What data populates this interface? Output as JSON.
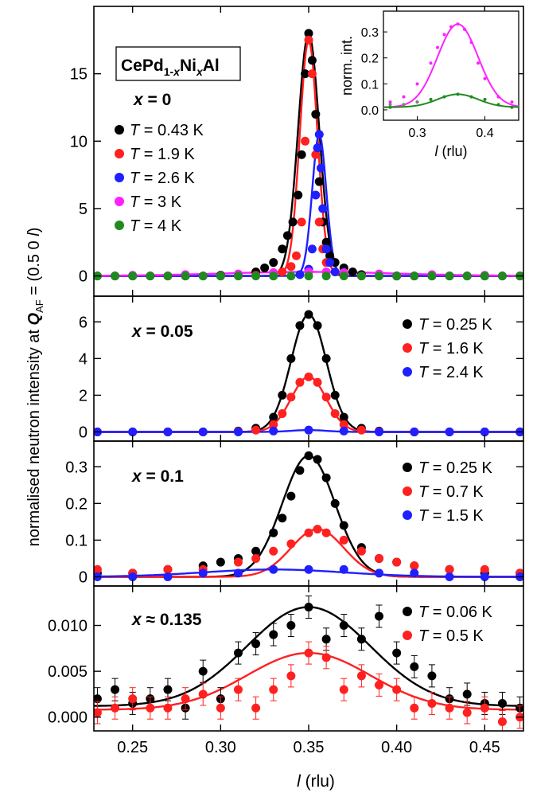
{
  "figure": {
    "ylabel_pre": "normalised neutron intensity at ",
    "ylabel_Q": "Q",
    "ylabel_sub": "AF",
    "ylabel_post": " = (0.5 0 ",
    "ylabel_l": "l",
    "ylabel_end": ")",
    "xlabel_l": "l",
    "xlabel_unit": " (rlu)",
    "compound_parts": [
      "CePd",
      "1-",
      "x",
      "Ni",
      "x",
      "Al"
    ],
    "x_ticks": [
      "0.25",
      "0.30",
      "0.35",
      "0.40",
      "0.45"
    ],
    "colors": {
      "black": "#000000",
      "red": "#ff2020",
      "blue": "#1f1fff",
      "magenta": "#ff20ff",
      "green": "#208a20",
      "grey": "#808080"
    }
  },
  "chart_data": [
    {
      "type": "scatter",
      "panel": "x = 0",
      "label_sym": "x",
      "label_rel": "=",
      "label_val": "0",
      "xlim": [
        0.228,
        0.472
      ],
      "ylim": [
        -1.5,
        20
      ],
      "yticks": [
        0,
        5,
        10,
        15
      ],
      "series": [
        {
          "name": "T = 0.43 K",
          "T": "0.43 K",
          "color": "#000000",
          "x": [
            0.23,
            0.24,
            0.25,
            0.26,
            0.27,
            0.28,
            0.29,
            0.3,
            0.31,
            0.32,
            0.325,
            0.33,
            0.335,
            0.338,
            0.341,
            0.344,
            0.346,
            0.348,
            0.35,
            0.352,
            0.354,
            0.356,
            0.358,
            0.36,
            0.362,
            0.365,
            0.37,
            0.375,
            0.38,
            0.39,
            0.4,
            0.41,
            0.42,
            0.43,
            0.44,
            0.45,
            0.46,
            0.47
          ],
          "y": [
            0,
            0,
            0,
            0,
            0,
            0,
            0,
            0.05,
            0.1,
            0.3,
            0.6,
            1.0,
            2.0,
            3.0,
            4.0,
            6.0,
            9.0,
            15.0,
            18.0,
            16.0,
            12.0,
            7.0,
            4.0,
            2.5,
            1.5,
            1.0,
            0.6,
            0.3,
            0.1,
            0.05,
            0,
            0,
            0,
            0,
            0,
            0,
            0,
            0
          ]
        },
        {
          "name": "T = 1.9 K",
          "T": "1.9 K",
          "color": "#ff2020",
          "x": [
            0.3,
            0.32,
            0.335,
            0.34,
            0.343,
            0.346,
            0.348,
            0.35,
            0.352,
            0.354,
            0.356,
            0.358,
            0.36,
            0.365,
            0.37,
            0.38,
            0.4
          ],
          "y": [
            0,
            0.05,
            0.3,
            0.7,
            1.5,
            4.0,
            10.0,
            17.5,
            15.0,
            9.0,
            4.0,
            2.0,
            1.0,
            0.3,
            0.1,
            0,
            0
          ]
        },
        {
          "name": "T = 2.6 K",
          "T": "2.6 K",
          "color": "#1f1fff",
          "x": [
            0.3,
            0.33,
            0.345,
            0.35,
            0.352,
            0.354,
            0.355,
            0.356,
            0.357,
            0.358,
            0.36,
            0.362,
            0.365,
            0.37,
            0.4
          ],
          "y": [
            0,
            0,
            0.1,
            0.5,
            2.0,
            6.0,
            9.5,
            10.5,
            8.0,
            5.0,
            2.0,
            1.0,
            0.3,
            0.05,
            0
          ]
        },
        {
          "name": "T = 3 K",
          "T": "3 K",
          "color": "#ff20ff",
          "x": [
            0.25,
            0.28,
            0.31,
            0.33,
            0.35,
            0.36,
            0.37,
            0.39,
            0.42,
            0.45
          ],
          "y": [
            0.05,
            0.1,
            0.15,
            0.25,
            0.3,
            0.3,
            0.25,
            0.15,
            0.1,
            0.05
          ]
        },
        {
          "name": "T = 4 K",
          "T": "4 K",
          "color": "#208a20",
          "x": [
            0.23,
            0.24,
            0.25,
            0.26,
            0.27,
            0.28,
            0.29,
            0.3,
            0.31,
            0.32,
            0.33,
            0.34,
            0.35,
            0.36,
            0.37,
            0.38,
            0.39,
            0.4,
            0.41,
            0.42,
            0.43,
            0.44,
            0.45,
            0.46,
            0.47
          ],
          "y": [
            0,
            0,
            0,
            0,
            0,
            0,
            0,
            0,
            0,
            0,
            0,
            0,
            0,
            0,
            0,
            0,
            0,
            0,
            0,
            0,
            0,
            0,
            0,
            0,
            0
          ]
        }
      ],
      "inset": {
        "xlabel_l": "l",
        "xlabel_unit": " (rlu)",
        "ylabel": "norm. int.",
        "xlim": [
          0.25,
          0.45
        ],
        "ylim": [
          -0.04,
          0.38
        ],
        "xticks": [
          0.3,
          0.4
        ],
        "yticks": [
          0.0,
          0.1,
          0.2,
          0.3
        ],
        "series": [
          {
            "color": "#ff20ff",
            "x": [
              0.26,
              0.28,
              0.3,
              0.32,
              0.33,
              0.34,
              0.35,
              0.36,
              0.37,
              0.38,
              0.39,
              0.4,
              0.42,
              0.44
            ],
            "y": [
              0.03,
              0.05,
              0.1,
              0.18,
              0.24,
              0.29,
              0.32,
              0.33,
              0.31,
              0.26,
              0.18,
              0.12,
              0.05,
              0.03
            ]
          },
          {
            "color": "#208a20",
            "x": [
              0.26,
              0.28,
              0.3,
              0.32,
              0.34,
              0.36,
              0.38,
              0.4,
              0.42,
              0.44
            ],
            "y": [
              0.01,
              0.02,
              0.03,
              0.04,
              0.05,
              0.06,
              0.05,
              0.04,
              0.02,
              0.01
            ]
          },
          {
            "color": "#808080",
            "x": [
              0.26,
              0.28,
              0.3
            ],
            "y": [
              0.02,
              0.02,
              0.03
            ]
          }
        ]
      }
    },
    {
      "type": "scatter",
      "panel": "x = 0.05",
      "label_sym": "x",
      "label_rel": "=",
      "label_val": "0.05",
      "xlim": [
        0.228,
        0.472
      ],
      "ylim": [
        -0.5,
        7.4
      ],
      "yticks": [
        0,
        2,
        4,
        6
      ],
      "series": [
        {
          "name": "T = 0.25 K",
          "T": "0.25 K",
          "color": "#000000",
          "x": [
            0.23,
            0.25,
            0.27,
            0.29,
            0.31,
            0.32,
            0.33,
            0.335,
            0.34,
            0.345,
            0.35,
            0.355,
            0.36,
            0.365,
            0.37,
            0.38,
            0.39,
            0.41,
            0.43,
            0.45,
            0.47
          ],
          "y": [
            0,
            0,
            0,
            0,
            0.05,
            0.2,
            0.8,
            2.0,
            4.0,
            5.8,
            6.4,
            5.8,
            4.0,
            2.0,
            0.8,
            0.2,
            0.05,
            0,
            0,
            0,
            0
          ]
        },
        {
          "name": "T = 1.6 K",
          "T": "1.6 K",
          "color": "#ff2020",
          "x": [
            0.23,
            0.25,
            0.27,
            0.29,
            0.31,
            0.32,
            0.33,
            0.335,
            0.34,
            0.345,
            0.35,
            0.355,
            0.36,
            0.365,
            0.37,
            0.38,
            0.39,
            0.41,
            0.43,
            0.45,
            0.47
          ],
          "y": [
            0,
            0,
            0,
            0,
            0.02,
            0.1,
            0.4,
            1.0,
            1.9,
            2.7,
            3.0,
            2.7,
            1.9,
            1.0,
            0.4,
            0.1,
            0.02,
            0,
            0,
            0,
            0
          ]
        },
        {
          "name": "T = 2.4 K",
          "T": "2.4 K",
          "color": "#1f1fff",
          "x": [
            0.23,
            0.25,
            0.27,
            0.29,
            0.31,
            0.33,
            0.35,
            0.37,
            0.39,
            0.41,
            0.43,
            0.45,
            0.47
          ],
          "y": [
            0,
            0,
            0,
            0,
            0,
            0.05,
            0.1,
            0.05,
            0,
            0,
            0,
            0,
            0
          ]
        }
      ]
    },
    {
      "type": "scatter",
      "panel": "x = 0.1",
      "label_sym": "x",
      "label_rel": "=",
      "label_val": "0.1",
      "xlim": [
        0.228,
        0.472
      ],
      "ylim": [
        -0.025,
        0.37
      ],
      "yticks": [
        0.0,
        0.1,
        0.2,
        0.3
      ],
      "series": [
        {
          "name": "T = 0.25 K",
          "T": "0.25 K",
          "color": "#000000",
          "x": [
            0.23,
            0.25,
            0.27,
            0.29,
            0.3,
            0.31,
            0.32,
            0.33,
            0.335,
            0.34,
            0.345,
            0.35,
            0.355,
            0.36,
            0.365,
            0.37,
            0.38,
            0.39,
            0.4,
            0.41,
            0.43,
            0.45,
            0.47
          ],
          "y": [
            0.01,
            0.01,
            0.02,
            0.03,
            0.04,
            0.05,
            0.07,
            0.12,
            0.16,
            0.22,
            0.29,
            0.33,
            0.32,
            0.27,
            0.2,
            0.14,
            0.08,
            0.05,
            0.04,
            0.03,
            0.02,
            0.01,
            0.01
          ]
        },
        {
          "name": "T = 0.7 K",
          "T": "0.7 K",
          "color": "#ff2020",
          "x": [
            0.23,
            0.25,
            0.27,
            0.29,
            0.31,
            0.32,
            0.33,
            0.34,
            0.35,
            0.355,
            0.36,
            0.37,
            0.38,
            0.39,
            0.4,
            0.41,
            0.43,
            0.45,
            0.47
          ],
          "y": [
            0.02,
            0.01,
            0.02,
            0.02,
            0.04,
            0.05,
            0.07,
            0.09,
            0.12,
            0.13,
            0.12,
            0.1,
            0.07,
            0.05,
            0.04,
            0.03,
            0.02,
            0.02,
            0.01
          ]
        },
        {
          "name": "T = 1.5 K",
          "T": "1.5 K",
          "color": "#1f1fff",
          "x": [
            0.23,
            0.25,
            0.27,
            0.29,
            0.31,
            0.33,
            0.35,
            0.37,
            0.39,
            0.41,
            0.43,
            0.45,
            0.47
          ],
          "y": [
            0,
            0,
            0,
            0.01,
            0.01,
            0.02,
            0.02,
            0.02,
            0.01,
            0.01,
            0,
            0,
            0
          ]
        }
      ]
    },
    {
      "type": "scatter",
      "panel": "x ≈ 0.135",
      "label_sym": "x",
      "label_rel": "≈",
      "label_val": "0.135",
      "xlim": [
        0.228,
        0.472
      ],
      "ylim": [
        -0.0015,
        0.0143
      ],
      "yticks": [
        0.0,
        0.005,
        0.01
      ],
      "ytick_labels": [
        "0.000",
        "0.005",
        "0.010"
      ],
      "series": [
        {
          "name": "T = 0.06 K",
          "T": "0.06 K",
          "color": "#000000",
          "x": [
            0.23,
            0.24,
            0.25,
            0.26,
            0.27,
            0.28,
            0.29,
            0.3,
            0.31,
            0.32,
            0.33,
            0.34,
            0.35,
            0.36,
            0.37,
            0.38,
            0.39,
            0.4,
            0.41,
            0.42,
            0.43,
            0.44,
            0.45,
            0.46,
            0.47
          ],
          "y": [
            0.002,
            0.003,
            0.0015,
            0.002,
            0.003,
            0.001,
            0.005,
            0.002,
            0.007,
            0.008,
            0.009,
            0.01,
            0.012,
            0.0085,
            0.01,
            0.0085,
            0.011,
            0.007,
            0.0055,
            0.0045,
            0.002,
            0.0025,
            0.0015,
            0.0015,
            0.001
          ]
        },
        {
          "name": "T = 0.5 K",
          "T": "0.5 K",
          "color": "#ff2020",
          "x": [
            0.23,
            0.24,
            0.25,
            0.26,
            0.27,
            0.28,
            0.29,
            0.3,
            0.31,
            0.32,
            0.33,
            0.34,
            0.35,
            0.36,
            0.37,
            0.38,
            0.39,
            0.4,
            0.41,
            0.42,
            0.43,
            0.44,
            0.45,
            0.46,
            0.47
          ],
          "y": [
            0.0005,
            0.001,
            0.002,
            0.001,
            0.001,
            0.002,
            0.0025,
            0.001,
            0.003,
            0.001,
            0.003,
            0.0045,
            0.007,
            0.0065,
            0.003,
            0.0045,
            0.0035,
            0.003,
            0.001,
            0.0015,
            0.001,
            0.0005,
            0.001,
            -0.0005,
            0
          ]
        }
      ]
    }
  ]
}
